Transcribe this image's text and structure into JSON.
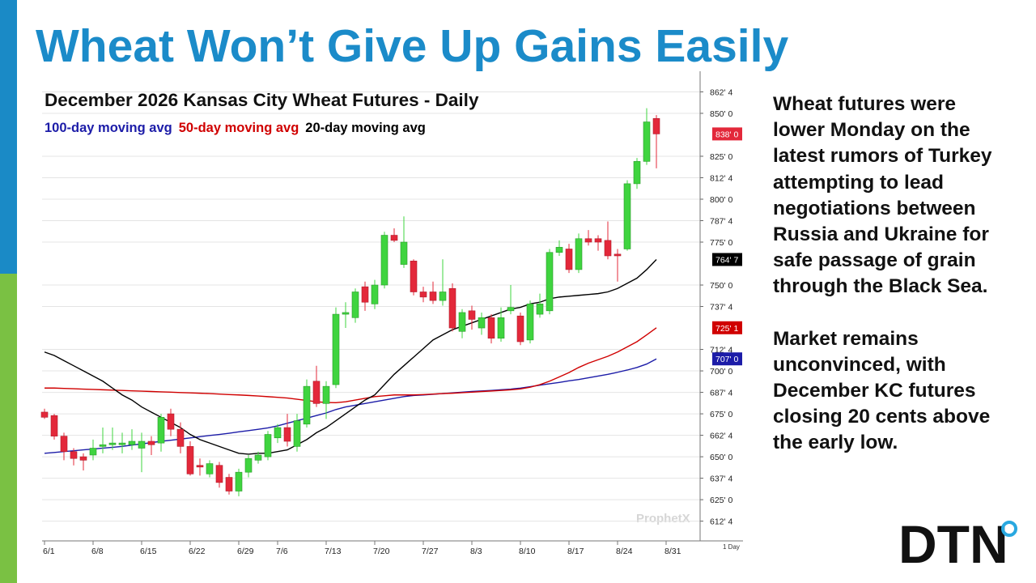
{
  "slide": {
    "title": "Wheat Won’t Give Up Gains Easily",
    "paragraphs": [
      "Wheat futures were lower Monday on the latest rumors of Turkey attempting to lead negotiations between Russia and Ukraine for safe passage of grain through the Black Sea.",
      "Market remains unconvinced, with December KC futures closing 20 cents above the early low."
    ],
    "logo": "DTN"
  },
  "chart_data": {
    "type": "candlestick",
    "title": "December 2026 Kansas City Wheat Futures - Daily",
    "interval_label": "1 Day",
    "watermark": "ProphetX",
    "up_color": "#3fd43f",
    "down_color": "#e3283a",
    "categories": [
      "6/1",
      null,
      null,
      null,
      null,
      "6/8",
      null,
      null,
      null,
      null,
      "6/15",
      null,
      null,
      null,
      null,
      "6/22",
      null,
      null,
      null,
      null,
      "6/29",
      null,
      null,
      null,
      "7/6",
      null,
      null,
      null,
      null,
      "7/13",
      null,
      null,
      null,
      null,
      "7/20",
      null,
      null,
      null,
      null,
      "7/27",
      null,
      null,
      null,
      null,
      "8/3",
      null,
      null,
      null,
      null,
      "8/10",
      null,
      null,
      null,
      null,
      "8/17",
      null,
      null,
      null,
      null,
      "8/24",
      null,
      null,
      null,
      null,
      "8/31"
    ],
    "open": [
      676,
      674,
      662,
      653,
      650,
      651,
      656,
      657,
      657,
      657,
      655,
      659,
      658,
      675,
      666,
      656,
      645,
      640,
      645,
      638,
      630,
      641,
      648,
      650,
      661,
      667,
      656,
      669,
      694,
      681,
      692,
      733,
      731,
      749,
      739,
      750,
      779,
      762,
      764,
      746,
      746,
      741,
      748,
      723,
      735,
      725,
      731,
      719,
      735,
      732,
      718,
      733,
      735,
      769,
      771,
      759,
      777,
      777,
      776,
      768,
      771,
      809,
      822,
      847,
      null
    ],
    "high": [
      678,
      675,
      664,
      655,
      652,
      660,
      667,
      667,
      664,
      666,
      664,
      662,
      675,
      678,
      670,
      659,
      649,
      648,
      647,
      640,
      643,
      651,
      653,
      665,
      669,
      675,
      675,
      695,
      703,
      694,
      737,
      740,
      748,
      752,
      753,
      781,
      783,
      790,
      765,
      749,
      752,
      765,
      751,
      736,
      738,
      734,
      733,
      737,
      750,
      734,
      741,
      745,
      771,
      776,
      774,
      780,
      782,
      779,
      787,
      771,
      811,
      824,
      853,
      849,
      null
    ],
    "low": [
      672,
      660,
      648,
      645,
      642,
      648,
      652,
      654,
      652,
      654,
      641,
      651,
      653,
      662,
      652,
      639,
      639,
      638,
      632,
      628,
      627,
      638,
      646,
      648,
      658,
      656,
      653,
      667,
      679,
      672,
      690,
      725,
      728,
      735,
      736,
      748,
      775,
      760,
      744,
      740,
      739,
      738,
      723,
      719,
      724,
      721,
      716,
      717,
      733,
      715,
      716,
      731,
      733,
      767,
      757,
      757,
      773,
      770,
      765,
      752,
      770,
      806,
      820,
      818,
      null
    ],
    "close": [
      673,
      662,
      653,
      649,
      648,
      655,
      657,
      658,
      658,
      659,
      659,
      657,
      673,
      666,
      656,
      640,
      644,
      646,
      635,
      630,
      641,
      649,
      651,
      663,
      667,
      659,
      671,
      691,
      681,
      691,
      733,
      734,
      746,
      740,
      750,
      779,
      776,
      775,
      746,
      743,
      741,
      746,
      725,
      734,
      730,
      731,
      719,
      731,
      737,
      717,
      739,
      739,
      769,
      772,
      759,
      777,
      775,
      775,
      767,
      767,
      809,
      822,
      845,
      838,
      null
    ],
    "close_labels": [
      null,
      null,
      null,
      null,
      null,
      null,
      null,
      null,
      null,
      null,
      null,
      null,
      null,
      null,
      null,
      null,
      null,
      null,
      null,
      null,
      null,
      null,
      null,
      null,
      null,
      null,
      null,
      null,
      null,
      null,
      null,
      null,
      null,
      null,
      null,
      null,
      null,
      null,
      null,
      null,
      null,
      null,
      null,
      null,
      null,
      null,
      null,
      null,
      null,
      null,
      null,
      null,
      null,
      null,
      null,
      null,
      null,
      null,
      null,
      null,
      null,
      null,
      null,
      "838' 0",
      null
    ],
    "series": [
      {
        "name": "100-day moving avg",
        "color": "#1c1ca8",
        "values": [
          652,
          652.5,
          653,
          653.5,
          654,
          654.5,
          655,
          655.5,
          656,
          656.8,
          657.5,
          658.2,
          659,
          659.6,
          660.3,
          661,
          661.7,
          662.4,
          663,
          663.7,
          664.5,
          665.2,
          666,
          666.8,
          668,
          669.5,
          671,
          672.5,
          674,
          675.5,
          677.5,
          679,
          680,
          681,
          682,
          683,
          684,
          685,
          685.7,
          686,
          686.4,
          686.8,
          687.2,
          687.6,
          688,
          688.3,
          688.6,
          689,
          689.4,
          690,
          690.8,
          691.7,
          692.5,
          693.3,
          694.2,
          695,
          696,
          697,
          698,
          699.2,
          700.5,
          702,
          704,
          707,
          null
        ],
        "value_labels": [
          null,
          null,
          null,
          null,
          null,
          null,
          null,
          null,
          null,
          null,
          null,
          null,
          null,
          null,
          null,
          null,
          null,
          null,
          null,
          null,
          null,
          null,
          null,
          null,
          null,
          null,
          null,
          null,
          null,
          null,
          null,
          null,
          null,
          null,
          null,
          null,
          null,
          null,
          null,
          null,
          null,
          null,
          null,
          null,
          null,
          null,
          null,
          null,
          null,
          null,
          null,
          null,
          null,
          null,
          null,
          null,
          null,
          null,
          null,
          null,
          null,
          null,
          null,
          "707' 0",
          null
        ]
      },
      {
        "name": "50-day moving avg",
        "color": "#d00000",
        "values": [
          690,
          690,
          689.8,
          689.6,
          689.4,
          689.2,
          689,
          688.8,
          688.6,
          688.4,
          688.2,
          688,
          687.8,
          687.6,
          687.4,
          687.2,
          687,
          686.8,
          686.5,
          686.2,
          686,
          685.7,
          685.4,
          685,
          684.6,
          684.2,
          683.5,
          682.8,
          682,
          681.6,
          681.5,
          682,
          683,
          684,
          685,
          685.5,
          686,
          686,
          686,
          686.2,
          686.5,
          686.8,
          687,
          687.3,
          687.6,
          688,
          688.3,
          688.6,
          689,
          689.5,
          690.5,
          692,
          694,
          696.5,
          699,
          702,
          704.5,
          706.5,
          708.5,
          711,
          714,
          717,
          721,
          725.125,
          null
        ],
        "value_labels": [
          null,
          null,
          null,
          null,
          null,
          null,
          null,
          null,
          null,
          null,
          null,
          null,
          null,
          null,
          null,
          null,
          null,
          null,
          null,
          null,
          null,
          null,
          null,
          null,
          null,
          null,
          null,
          null,
          null,
          null,
          null,
          null,
          null,
          null,
          null,
          null,
          null,
          null,
          null,
          null,
          null,
          null,
          null,
          null,
          null,
          null,
          null,
          null,
          null,
          null,
          null,
          null,
          null,
          null,
          null,
          null,
          null,
          null,
          null,
          null,
          null,
          null,
          null,
          "725' 1",
          null
        ]
      },
      {
        "name": "20-day moving avg",
        "color": "#000000",
        "values": [
          711,
          709,
          706,
          703,
          700,
          697,
          694,
          690,
          686,
          683,
          679,
          676,
          673,
          670,
          667,
          663,
          660,
          658,
          656,
          654,
          652,
          651.5,
          652,
          652,
          653,
          654,
          657,
          660,
          664,
          667,
          671,
          675,
          679,
          683,
          686,
          692,
          698,
          703,
          708,
          713,
          718,
          721,
          724,
          726,
          728,
          730,
          732,
          734,
          736,
          737,
          739,
          740,
          742,
          743,
          743.5,
          744,
          744.5,
          745,
          746,
          748,
          751,
          754,
          759,
          764.875,
          null
        ],
        "value_labels": [
          null,
          null,
          null,
          null,
          null,
          null,
          null,
          null,
          null,
          null,
          null,
          null,
          null,
          null,
          null,
          null,
          null,
          null,
          null,
          null,
          null,
          null,
          null,
          null,
          null,
          null,
          null,
          null,
          null,
          null,
          null,
          null,
          null,
          null,
          null,
          null,
          null,
          null,
          null,
          null,
          null,
          null,
          null,
          null,
          null,
          null,
          null,
          null,
          null,
          null,
          null,
          null,
          null,
          null,
          null,
          null,
          null,
          null,
          null,
          null,
          null,
          null,
          null,
          "764' 7",
          null
        ]
      }
    ],
    "ylim": [
      601,
      874.5
    ],
    "yticks": [
      {
        "value": 862.5,
        "label": "862' 4"
      },
      {
        "value": 850,
        "label": "850' 0"
      },
      {
        "value": 825,
        "label": "825' 0"
      },
      {
        "value": 812.5,
        "label": "812' 4"
      },
      {
        "value": 800,
        "label": "800' 0"
      },
      {
        "value": 787.5,
        "label": "787' 4"
      },
      {
        "value": 775,
        "label": "775' 0"
      },
      {
        "value": 750,
        "label": "750' 0"
      },
      {
        "value": 737.5,
        "label": "737' 4"
      },
      {
        "value": 712.5,
        "label": "712' 4"
      },
      {
        "value": 700,
        "label": "700' 0"
      },
      {
        "value": 687.5,
        "label": "687' 4"
      },
      {
        "value": 675,
        "label": "675' 0"
      },
      {
        "value": 662.5,
        "label": "662' 4"
      },
      {
        "value": 650,
        "label": "650' 0"
      },
      {
        "value": 637.5,
        "label": "637' 4"
      },
      {
        "value": 625,
        "label": "625' 0"
      },
      {
        "value": 612.5,
        "label": "612' 4"
      }
    ],
    "grid": true
  }
}
